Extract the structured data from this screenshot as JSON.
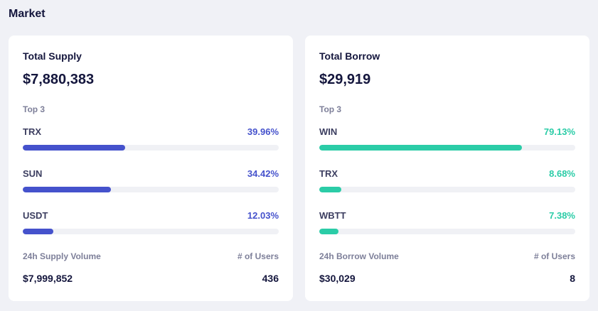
{
  "page": {
    "title": "Market"
  },
  "supply": {
    "title": "Total Supply",
    "amount": "$7,880,383",
    "top_label": "Top 3",
    "accent": "#4552cc",
    "assets": [
      {
        "name": "TRX",
        "percent_text": "39.96%",
        "percent": 39.96
      },
      {
        "name": "SUN",
        "percent_text": "34.42%",
        "percent": 34.42
      },
      {
        "name": "USDT",
        "percent_text": "12.03%",
        "percent": 12.03
      }
    ],
    "volume_label": "24h Supply Volume",
    "users_label": "# of Users",
    "volume_value": "$7,999,852",
    "users_value": "436"
  },
  "borrow": {
    "title": "Total Borrow",
    "amount": "$29,919",
    "top_label": "Top 3",
    "accent": "#2bcca7",
    "assets": [
      {
        "name": "WIN",
        "percent_text": "79.13%",
        "percent": 79.13
      },
      {
        "name": "TRX",
        "percent_text": "8.68%",
        "percent": 8.68
      },
      {
        "name": "WBTT",
        "percent_text": "7.38%",
        "percent": 7.38
      }
    ],
    "volume_label": "24h Borrow Volume",
    "users_label": "# of Users",
    "volume_value": "$30,029",
    "users_value": "8"
  },
  "colors": {
    "background": "#f0f1f6",
    "card": "#ffffff",
    "track": "#f0f1f5",
    "heading": "#14163d",
    "muted": "#7d7f99"
  }
}
